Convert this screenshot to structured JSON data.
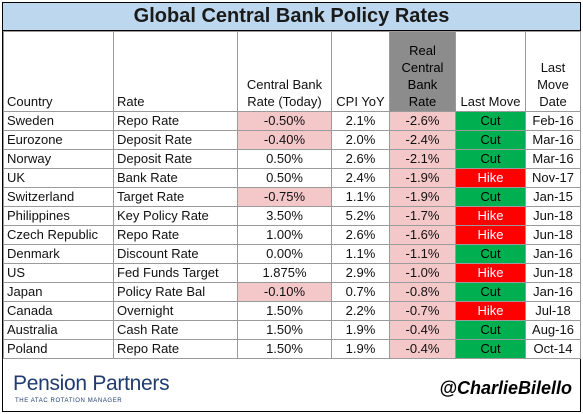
{
  "title": "Global Central Bank Policy Rates",
  "headers": {
    "country": "Country",
    "rate": "Rate",
    "cb_rate": [
      "Central Bank",
      "Rate (Today)"
    ],
    "cpi": "CPI YoY",
    "real_rate": [
      "Real",
      "Central",
      "Bank",
      "Rate"
    ],
    "last_move": "Last Move",
    "last_move_date": [
      "Last",
      "Move",
      "Date"
    ]
  },
  "rows": [
    {
      "country": "Sweden",
      "rate": "Repo Rate",
      "cb_rate": "-0.50%",
      "cpi": "2.1%",
      "real_rate": "-2.6%",
      "last_move": "Cut",
      "date": "Feb-16"
    },
    {
      "country": "Eurozone",
      "rate": "Deposit Rate",
      "cb_rate": "-0.40%",
      "cpi": "2.0%",
      "real_rate": "-2.4%",
      "last_move": "Cut",
      "date": "Mar-16"
    },
    {
      "country": "Norway",
      "rate": "Deposit Rate",
      "cb_rate": "0.50%",
      "cpi": "2.6%",
      "real_rate": "-2.1%",
      "last_move": "Cut",
      "date": "Mar-16"
    },
    {
      "country": "UK",
      "rate": "Bank Rate",
      "cb_rate": "0.50%",
      "cpi": "2.4%",
      "real_rate": "-1.9%",
      "last_move": "Hike",
      "date": "Nov-17"
    },
    {
      "country": "Switzerland",
      "rate": "Target Rate",
      "cb_rate": "-0.75%",
      "cpi": "1.1%",
      "real_rate": "-1.9%",
      "last_move": "Cut",
      "date": "Jan-15"
    },
    {
      "country": "Philippines",
      "rate": "Key Policy Rate",
      "cb_rate": "3.50%",
      "cpi": "5.2%",
      "real_rate": "-1.7%",
      "last_move": "Hike",
      "date": "Jun-18"
    },
    {
      "country": "Czech Republic",
      "rate": "Repo Rate",
      "cb_rate": "1.00%",
      "cpi": "2.6%",
      "real_rate": "-1.6%",
      "last_move": "Hike",
      "date": "Jun-18"
    },
    {
      "country": "Denmark",
      "rate": "Discount Rate",
      "cb_rate": "0.00%",
      "cpi": "1.1%",
      "real_rate": "-1.1%",
      "last_move": "Cut",
      "date": "Jan-16"
    },
    {
      "country": "US",
      "rate": "Fed Funds Target",
      "cb_rate": "1.875%",
      "cpi": "2.9%",
      "real_rate": "-1.0%",
      "last_move": "Hike",
      "date": "Jun-18"
    },
    {
      "country": "Japan",
      "rate": "Policy Rate Bal",
      "cb_rate": "-0.10%",
      "cpi": "0.7%",
      "real_rate": "-0.8%",
      "last_move": "Cut",
      "date": "Jan-16"
    },
    {
      "country": "Canada",
      "rate": "Overnight",
      "cb_rate": "1.50%",
      "cpi": "2.2%",
      "real_rate": "-0.7%",
      "last_move": "Hike",
      "date": "Jul-18"
    },
    {
      "country": "Australia",
      "rate": "Cash Rate",
      "cb_rate": "1.50%",
      "cpi": "1.9%",
      "real_rate": "-0.4%",
      "last_move": "Cut",
      "date": "Aug-16"
    },
    {
      "country": "Poland",
      "rate": "Repo Rate",
      "cb_rate": "1.50%",
      "cpi": "1.9%",
      "real_rate": "-0.4%",
      "last_move": "Cut",
      "date": "Oct-14"
    }
  ],
  "colors": {
    "title_bg": "#bdd7ee",
    "negative_bg": "#f4c7c9",
    "cut_bg": "#00b050",
    "hike_bg": "#ff0000",
    "real_header_bg": "#8c8c8c"
  },
  "footer": {
    "logo_name": "Pension Partners",
    "logo_tagline": "THE ATAC ROTATION MANAGER",
    "handle": "@CharlieBilello"
  }
}
